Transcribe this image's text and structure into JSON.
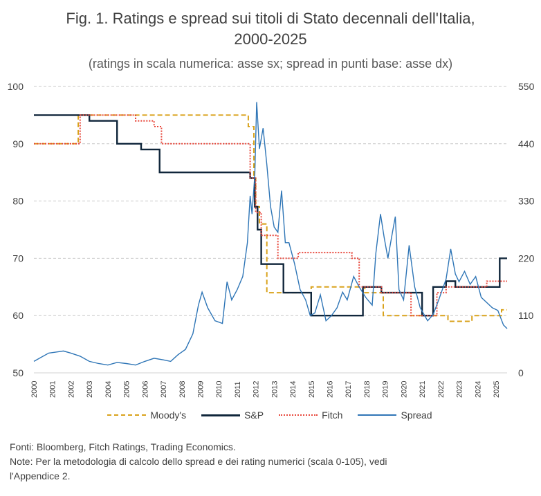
{
  "title_line1": "Fig. 1. Ratings e spread sui titoli di Stato decennali dell'Italia,",
  "title_line2": "2000-2025",
  "subtitle": "(ratings in scala numerica: asse sx; spread in punti base: asse dx)",
  "notes": {
    "sources": "Fonti: Bloomberg, Fitch Ratings, Trading Economics.",
    "note_line1": "Note: Per la metodologia di calcolo dello spread e dei rating numerici (scala 0-105), vedi",
    "note_line2": "l'Appendice 2."
  },
  "chart_data": {
    "type": "line",
    "x_axis": {
      "range": [
        2000,
        2025.6
      ],
      "ticks": [
        "2000",
        "2001",
        "2002",
        "2003",
        "2004",
        "2005",
        "2006",
        "2007",
        "2008",
        "2009",
        "2010",
        "2011",
        "2012",
        "2013",
        "2014",
        "2015",
        "2016",
        "2017",
        "2018",
        "2019",
        "2020",
        "2021",
        "2022",
        "2023",
        "2024",
        "2025"
      ]
    },
    "y_left": {
      "range": [
        50,
        100
      ],
      "ticks": [
        "50",
        "60",
        "70",
        "80",
        "90",
        "100"
      ]
    },
    "y_right": {
      "range": [
        0,
        550
      ],
      "ticks": [
        "0",
        "110",
        "220",
        "330",
        "440",
        "550"
      ]
    },
    "grid": true,
    "legend_position": "bottom",
    "series": [
      {
        "name": "Moody's",
        "axis": "left",
        "color": "#D9A21B",
        "dash": "dashed",
        "step": true,
        "points": [
          [
            2000,
            90
          ],
          [
            2002.4,
            95
          ],
          [
            2011.6,
            93
          ],
          [
            2011.9,
            84
          ],
          [
            2012.0,
            79
          ],
          [
            2012.2,
            76
          ],
          [
            2012.6,
            64
          ],
          [
            2015.0,
            65
          ],
          [
            2017.9,
            64
          ],
          [
            2018.9,
            60
          ],
          [
            2022.4,
            59
          ],
          [
            2023.7,
            60
          ],
          [
            2025.3,
            61
          ],
          [
            2025.6,
            61
          ]
        ]
      },
      {
        "name": "S&P",
        "axis": "left",
        "color": "#10263B",
        "dash": "solid",
        "step": true,
        "points": [
          [
            2000,
            95
          ],
          [
            2003.0,
            94
          ],
          [
            2004.5,
            90
          ],
          [
            2005.8,
            89
          ],
          [
            2006.8,
            85
          ],
          [
            2011.7,
            84
          ],
          [
            2011.95,
            79
          ],
          [
            2012.1,
            75
          ],
          [
            2012.3,
            69
          ],
          [
            2013.5,
            64
          ],
          [
            2015.0,
            60
          ],
          [
            2017.8,
            65
          ],
          [
            2018.8,
            64
          ],
          [
            2021.0,
            60
          ],
          [
            2021.6,
            65
          ],
          [
            2022.3,
            66
          ],
          [
            2022.8,
            65
          ],
          [
            2025.2,
            70
          ],
          [
            2025.6,
            70
          ]
        ]
      },
      {
        "name": "Fitch",
        "axis": "left",
        "color": "#E8483C",
        "dash": "dotted",
        "step": true,
        "points": [
          [
            2000,
            90
          ],
          [
            2002.5,
            95
          ],
          [
            2005.5,
            94
          ],
          [
            2006.5,
            93
          ],
          [
            2006.9,
            90
          ],
          [
            2011.7,
            84
          ],
          [
            2012.0,
            78
          ],
          [
            2012.3,
            74
          ],
          [
            2013.2,
            70
          ],
          [
            2014.3,
            71
          ],
          [
            2017.2,
            70
          ],
          [
            2017.6,
            65
          ],
          [
            2018.8,
            64
          ],
          [
            2020.4,
            60
          ],
          [
            2021.8,
            64
          ],
          [
            2022.3,
            65
          ],
          [
            2024.5,
            66
          ],
          [
            2025.6,
            66
          ]
        ]
      },
      {
        "name": "Spread",
        "axis": "right",
        "color": "#2E75B6",
        "dash": "solid",
        "step": false,
        "points": [
          [
            2000,
            22
          ],
          [
            2000.3,
            28
          ],
          [
            2000.8,
            38
          ],
          [
            2001.2,
            40
          ],
          [
            2001.6,
            42
          ],
          [
            2002.0,
            38
          ],
          [
            2002.5,
            32
          ],
          [
            2003.0,
            22
          ],
          [
            2003.5,
            18
          ],
          [
            2004.0,
            15
          ],
          [
            2004.5,
            20
          ],
          [
            2005.0,
            18
          ],
          [
            2005.5,
            15
          ],
          [
            2006.0,
            22
          ],
          [
            2006.5,
            28
          ],
          [
            2007.0,
            25
          ],
          [
            2007.4,
            22
          ],
          [
            2007.8,
            35
          ],
          [
            2008.2,
            45
          ],
          [
            2008.6,
            75
          ],
          [
            2008.9,
            130
          ],
          [
            2009.1,
            155
          ],
          [
            2009.4,
            125
          ],
          [
            2009.8,
            100
          ],
          [
            2010.2,
            95
          ],
          [
            2010.45,
            175
          ],
          [
            2010.7,
            140
          ],
          [
            2011.0,
            160
          ],
          [
            2011.3,
            185
          ],
          [
            2011.55,
            250
          ],
          [
            2011.7,
            340
          ],
          [
            2011.8,
            305
          ],
          [
            2011.95,
            380
          ],
          [
            2012.05,
            520
          ],
          [
            2012.2,
            430
          ],
          [
            2012.4,
            470
          ],
          [
            2012.6,
            400
          ],
          [
            2012.8,
            320
          ],
          [
            2013.0,
            280
          ],
          [
            2013.2,
            270
          ],
          [
            2013.4,
            350
          ],
          [
            2013.6,
            250
          ],
          [
            2013.8,
            250
          ],
          [
            2014.1,
            210
          ],
          [
            2014.4,
            160
          ],
          [
            2014.7,
            140
          ],
          [
            2014.95,
            110
          ],
          [
            2015.2,
            115
          ],
          [
            2015.5,
            150
          ],
          [
            2015.8,
            100
          ],
          [
            2016.1,
            110
          ],
          [
            2016.4,
            125
          ],
          [
            2016.7,
            155
          ],
          [
            2016.95,
            140
          ],
          [
            2017.3,
            185
          ],
          [
            2017.6,
            165
          ],
          [
            2017.95,
            145
          ],
          [
            2018.3,
            130
          ],
          [
            2018.5,
            230
          ],
          [
            2018.75,
            305
          ],
          [
            2018.95,
            260
          ],
          [
            2019.15,
            220
          ],
          [
            2019.4,
            270
          ],
          [
            2019.55,
            300
          ],
          [
            2019.75,
            160
          ],
          [
            2020.0,
            140
          ],
          [
            2020.3,
            245
          ],
          [
            2020.6,
            165
          ],
          [
            2020.9,
            125
          ],
          [
            2021.3,
            100
          ],
          [
            2021.6,
            112
          ],
          [
            2021.9,
            140
          ],
          [
            2022.3,
            180
          ],
          [
            2022.55,
            238
          ],
          [
            2022.8,
            190
          ],
          [
            2023.0,
            175
          ],
          [
            2023.3,
            195
          ],
          [
            2023.6,
            170
          ],
          [
            2023.9,
            185
          ],
          [
            2024.2,
            145
          ],
          [
            2024.5,
            135
          ],
          [
            2024.8,
            125
          ],
          [
            2025.1,
            120
          ],
          [
            2025.4,
            92
          ],
          [
            2025.6,
            85
          ]
        ]
      }
    ]
  },
  "colors": {
    "grid": "#C8C8C8",
    "axis_text": "#404040"
  }
}
